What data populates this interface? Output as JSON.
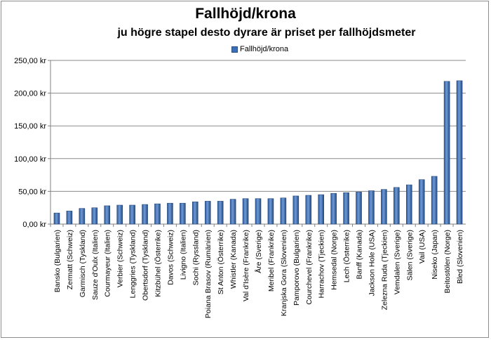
{
  "chart_data": {
    "type": "bar",
    "title": "Fallhöjd/krona",
    "subtitle": "ju högre stapel desto dyrare är priset per fallhöjdsmeter",
    "legend_position": "top-center",
    "grid": true,
    "ylim": [
      0,
      250
    ],
    "yticks": [
      "0,00 kr",
      "50,00 kr",
      "100,00 kr",
      "150,00 kr",
      "200,00 kr",
      "250,00 kr"
    ],
    "categories": [
      "Bansko (Bulgarien)",
      "Zermatt (Schweiz)",
      "Garmisch (Tyskland)",
      "Sauze d'Oulx (Italien)",
      "Courmayeur (Italien)",
      "Verbier (Schweiz)",
      "Lenggries (Tyskland)",
      "Obertsdorf (Tyskland)",
      "Kitzbühel (Österrike)",
      "Davos (Schweiz)",
      "Livigno (Italien)",
      "Sochi (Ryssland)",
      "Poiana Brasov (Rumänien)",
      "St Anton (Österrike)",
      "Whistler (Kanada)",
      "Val d'Isère (Frankrike)",
      "Åre (Sverige)",
      "Meribel (Frankrike)",
      "Kranjska Gora (Slovenien)",
      "Pamporovo (Bulgarien)",
      "Courchevel (Frankrike)",
      "Harrachov (Tjeckien)",
      "Hemsedal (Norge)",
      "Lech (Österrike)",
      "Banff (Kanada)",
      "Jackson Hole (USA)",
      "Zelezna Ruda (Tjeckien)",
      "Vemdalen (Sverige)",
      "Sälen (Sverige)",
      "Vail (USA)",
      "Niseko (Japan)",
      "Beitostölen (Norge)",
      "Bled (Slovenien)"
    ],
    "series": [
      {
        "name": "Fallhöjd/krona",
        "color": "#3d6fb8",
        "values": [
          17,
          20,
          24,
          25,
          28,
          29,
          29,
          30,
          31,
          32,
          32,
          34,
          35,
          35,
          38,
          39,
          39,
          39,
          40,
          43,
          44,
          45,
          47,
          48,
          49,
          51,
          53,
          56,
          60,
          68,
          73,
          218,
          219
        ]
      }
    ]
  }
}
